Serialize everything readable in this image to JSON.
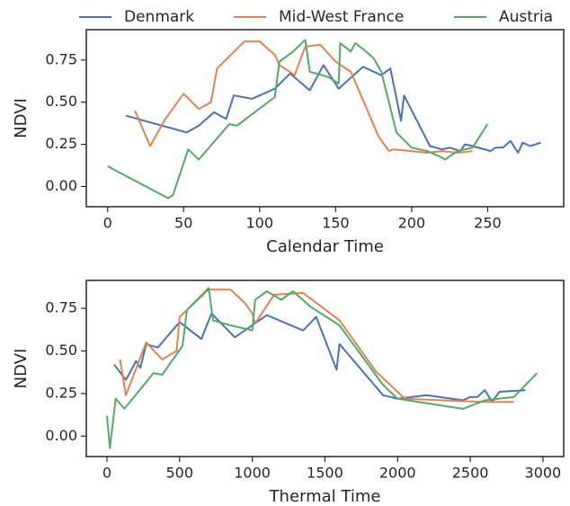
{
  "chart_data": [
    {
      "type": "line",
      "xlabel": "Calendar Time",
      "ylabel": "NDVI",
      "xlim": [
        -14,
        300
      ],
      "ylim": [
        -0.12,
        0.93
      ],
      "xticks": [
        0,
        50,
        100,
        150,
        200,
        250
      ],
      "yticks": [
        {
          "value": 0,
          "label": "0.00"
        },
        {
          "value": 0.25,
          "label": "0.25"
        },
        {
          "value": 0.5,
          "label": "0.50"
        },
        {
          "value": 0.75,
          "label": "0.75"
        }
      ],
      "legend": "top",
      "series": [
        {
          "name": "Denmark",
          "color": "#4c72b0",
          "x": [
            12,
            52,
            60,
            70,
            78,
            83,
            95,
            110,
            120,
            133,
            142,
            152,
            168,
            180,
            186,
            193,
            195,
            212,
            220,
            225,
            232,
            235,
            240,
            252,
            255,
            260,
            265,
            270,
            273,
            278,
            285
          ],
          "values": [
            0.42,
            0.32,
            0.36,
            0.44,
            0.4,
            0.54,
            0.52,
            0.58,
            0.67,
            0.57,
            0.72,
            0.58,
            0.71,
            0.66,
            0.7,
            0.39,
            0.54,
            0.24,
            0.22,
            0.23,
            0.21,
            0.25,
            0.24,
            0.21,
            0.23,
            0.23,
            0.27,
            0.2,
            0.26,
            0.24,
            0.26
          ]
        },
        {
          "name": "Mid-West France",
          "color": "#dd8452",
          "x": [
            18,
            28,
            38,
            50,
            60,
            68,
            72,
            90,
            100,
            110,
            113,
            123,
            130,
            140,
            150,
            160,
            170,
            178,
            185,
            188,
            200,
            210,
            220,
            230,
            240
          ],
          "values": [
            0.45,
            0.24,
            0.4,
            0.55,
            0.46,
            0.5,
            0.7,
            0.86,
            0.86,
            0.78,
            0.72,
            0.66,
            0.83,
            0.84,
            0.74,
            0.68,
            0.47,
            0.3,
            0.21,
            0.22,
            0.21,
            0.2,
            0.21,
            0.2,
            0.21
          ]
        },
        {
          "name": "Austria",
          "color": "#55a868",
          "x": [
            0,
            40,
            43,
            53,
            60,
            80,
            85,
            110,
            113,
            122,
            130,
            133,
            145,
            152,
            153,
            160,
            163,
            170,
            175,
            180,
            190,
            200,
            210,
            218,
            222,
            230,
            240,
            250
          ],
          "values": [
            0.12,
            -0.07,
            -0.05,
            0.22,
            0.16,
            0.37,
            0.36,
            0.53,
            0.74,
            0.8,
            0.87,
            0.68,
            0.65,
            0.61,
            0.85,
            0.8,
            0.85,
            0.8,
            0.76,
            0.68,
            0.32,
            0.23,
            0.21,
            0.18,
            0.16,
            0.21,
            0.23,
            0.37
          ]
        }
      ]
    },
    {
      "type": "line",
      "xlabel": "Thermal Time",
      "ylabel": "NDVI",
      "xlim": [
        -142,
        3143
      ],
      "ylim": [
        -0.12,
        0.914
      ],
      "xticks": [
        0,
        500,
        1000,
        1500,
        2000,
        2500,
        3000
      ],
      "yticks": [
        {
          "value": 0,
          "label": "0.00"
        },
        {
          "value": 0.25,
          "label": "0.25"
        },
        {
          "value": 0.5,
          "label": "0.50"
        },
        {
          "value": 0.75,
          "label": "0.75"
        }
      ],
      "series": [
        {
          "color": "#4c72b0",
          "x": [
            50,
            130,
            150,
            200,
            230,
            270,
            350,
            500,
            650,
            720,
            880,
            1100,
            1350,
            1440,
            1580,
            1600,
            1900,
            2000,
            2200,
            2450,
            2500,
            2550,
            2600,
            2650,
            2700,
            2880
          ],
          "values": [
            0.42,
            0.33,
            0.36,
            0.44,
            0.4,
            0.54,
            0.52,
            0.67,
            0.57,
            0.72,
            0.58,
            0.71,
            0.62,
            0.7,
            0.39,
            0.54,
            0.24,
            0.22,
            0.24,
            0.21,
            0.23,
            0.23,
            0.27,
            0.2,
            0.26,
            0.27
          ]
        },
        {
          "color": "#dd8452",
          "x": [
            90,
            130,
            270,
            380,
            480,
            500,
            700,
            850,
            950,
            1000,
            1020,
            1150,
            1350,
            1600,
            1850,
            2050,
            2300,
            2600,
            2800
          ],
          "values": [
            0.45,
            0.24,
            0.55,
            0.45,
            0.5,
            0.7,
            0.86,
            0.86,
            0.78,
            0.72,
            0.66,
            0.83,
            0.84,
            0.68,
            0.38,
            0.22,
            0.21,
            0.2,
            0.2
          ]
        },
        {
          "color": "#55a868",
          "x": [
            0,
            20,
            60,
            120,
            320,
            380,
            520,
            550,
            700,
            730,
            850,
            1000,
            1020,
            1100,
            1200,
            1280,
            1400,
            1600,
            1900,
            2000,
            2300,
            2450,
            2600,
            2800,
            2960
          ],
          "values": [
            0.12,
            -0.07,
            0.22,
            0.16,
            0.37,
            0.36,
            0.53,
            0.74,
            0.87,
            0.68,
            0.65,
            0.62,
            0.8,
            0.85,
            0.8,
            0.85,
            0.76,
            0.65,
            0.3,
            0.22,
            0.18,
            0.16,
            0.21,
            0.23,
            0.37
          ]
        }
      ]
    }
  ]
}
